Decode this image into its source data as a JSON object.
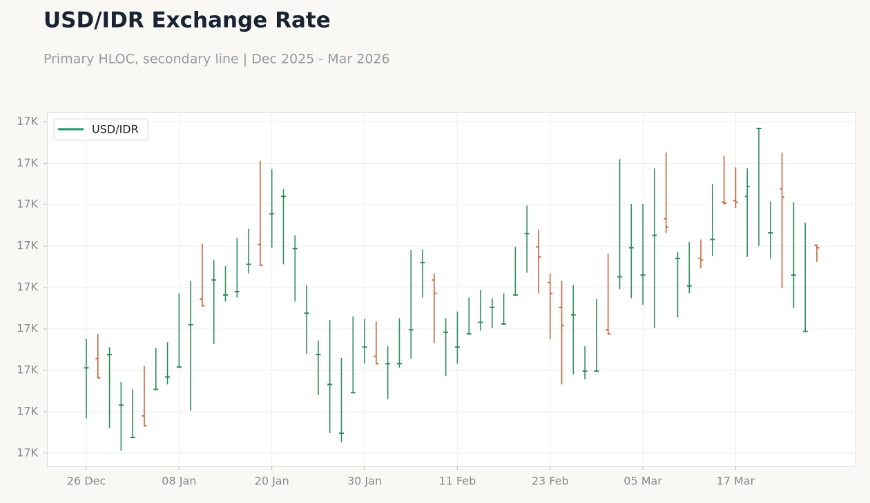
{
  "chart_data": {
    "type": "ohlc",
    "title": "USD/IDR Exchange Rate",
    "subtitle": "Primary HLOC, secondary line | Dec 2025 - Mar 2026",
    "categories": [
      "26 Dec",
      null,
      null,
      null,
      null,
      null,
      null,
      null,
      "08 Jan",
      null,
      null,
      null,
      null,
      null,
      null,
      null,
      "20 Jan",
      null,
      null,
      null,
      null,
      null,
      null,
      null,
      "30 Jan",
      null,
      null,
      null,
      null,
      null,
      null,
      null,
      "11 Feb",
      null,
      null,
      null,
      null,
      null,
      null,
      null,
      "23 Feb",
      null,
      null,
      null,
      null,
      null,
      null,
      null,
      "05 Mar",
      null,
      null,
      null,
      null,
      null,
      null,
      null,
      "17 Mar",
      null,
      null,
      null,
      null,
      null,
      null,
      null
    ],
    "series": [
      {
        "name": "USD/IDR",
        "color": "#129a6b",
        "up_color": "#2e8b57",
        "down_color": "#c8643b",
        "open": [
          16703,
          16714,
          16719,
          16658,
          16619,
          16645,
          16677,
          16692,
          16704,
          16755,
          16786,
          16809,
          16791,
          16795,
          16828,
          16852,
          16889,
          16910,
          16847,
          16769,
          16719,
          16683,
          16624,
          16673,
          16728,
          16717,
          16708,
          16708,
          16749,
          16830,
          16809,
          16746,
          16728,
          16744,
          16758,
          16776,
          16756,
          16791,
          16865,
          16849,
          16806,
          16776,
          16767,
          16699,
          16699,
          16749,
          16813,
          16848,
          16815,
          16863,
          16883,
          16835,
          16802,
          16835,
          16858,
          16903,
          16905,
          16910,
          16992,
          16866,
          16919,
          16815,
          16747,
          16851
        ],
        "high": [
          16738,
          16744,
          16728,
          16686,
          16677,
          16705,
          16727,
          16734,
          16793,
          16808,
          16853,
          16833,
          16826,
          16860,
          16871,
          16953,
          16943,
          16919,
          16863,
          16803,
          16736,
          16761,
          16715,
          16765,
          16762,
          16759,
          16729,
          16763,
          16845,
          16846,
          16817,
          16763,
          16771,
          16788,
          16797,
          16787,
          16793,
          16849,
          16899,
          16870,
          16817,
          16808,
          16803,
          16729,
          16786,
          16841,
          16955,
          16901,
          16901,
          16944,
          16963,
          16843,
          16855,
          16858,
          16925,
          16959,
          16945,
          16944,
          16993,
          16904,
          16963,
          16903,
          16878,
          16852
        ],
        "low": [
          16642,
          16690,
          16630,
          16603,
          16618,
          16632,
          16676,
          16683,
          16703,
          16651,
          16777,
          16732,
          16783,
          16788,
          16817,
          16826,
          16848,
          16828,
          16783,
          16720,
          16670,
          16624,
          16613,
          16672,
          16708,
          16707,
          16665,
          16703,
          16714,
          16788,
          16733,
          16693,
          16708,
          16743,
          16748,
          16751,
          16755,
          16790,
          16818,
          16793,
          16738,
          16683,
          16695,
          16689,
          16698,
          16743,
          16798,
          16787,
          16779,
          16751,
          16866,
          16764,
          16793,
          16823,
          16838,
          16900,
          16896,
          16837,
          16850,
          16835,
          16799,
          16775,
          16746,
          16831
        ],
        "close": [
          16703,
          16691,
          16719,
          16658,
          16619,
          16633,
          16677,
          16692,
          16704,
          16755,
          16778,
          16809,
          16791,
          16795,
          16828,
          16827,
          16889,
          16910,
          16847,
          16769,
          16719,
          16683,
          16624,
          16673,
          16728,
          16708,
          16708,
          16708,
          16749,
          16830,
          16793,
          16746,
          16728,
          16744,
          16758,
          16776,
          16756,
          16791,
          16865,
          16837,
          16793,
          16754,
          16767,
          16699,
          16699,
          16744,
          16813,
          16848,
          16815,
          16863,
          16873,
          16835,
          16802,
          16833,
          16858,
          16902,
          16903,
          16922,
          16992,
          16866,
          16909,
          16815,
          16747,
          16848
        ]
      }
    ],
    "ylim": [
      16584,
      17012
    ],
    "yticks": [
      {
        "value": 16600,
        "label": "17K"
      },
      {
        "value": 16650,
        "label": "17K"
      },
      {
        "value": 16700,
        "label": "17K"
      },
      {
        "value": 16750,
        "label": "17K"
      },
      {
        "value": 16800,
        "label": "17K"
      },
      {
        "value": 16850,
        "label": "17K"
      },
      {
        "value": 16900,
        "label": "17K"
      },
      {
        "value": 16950,
        "label": "17K"
      },
      {
        "value": 17000,
        "label": "17K"
      }
    ],
    "grid": true,
    "legend": "upper left"
  }
}
